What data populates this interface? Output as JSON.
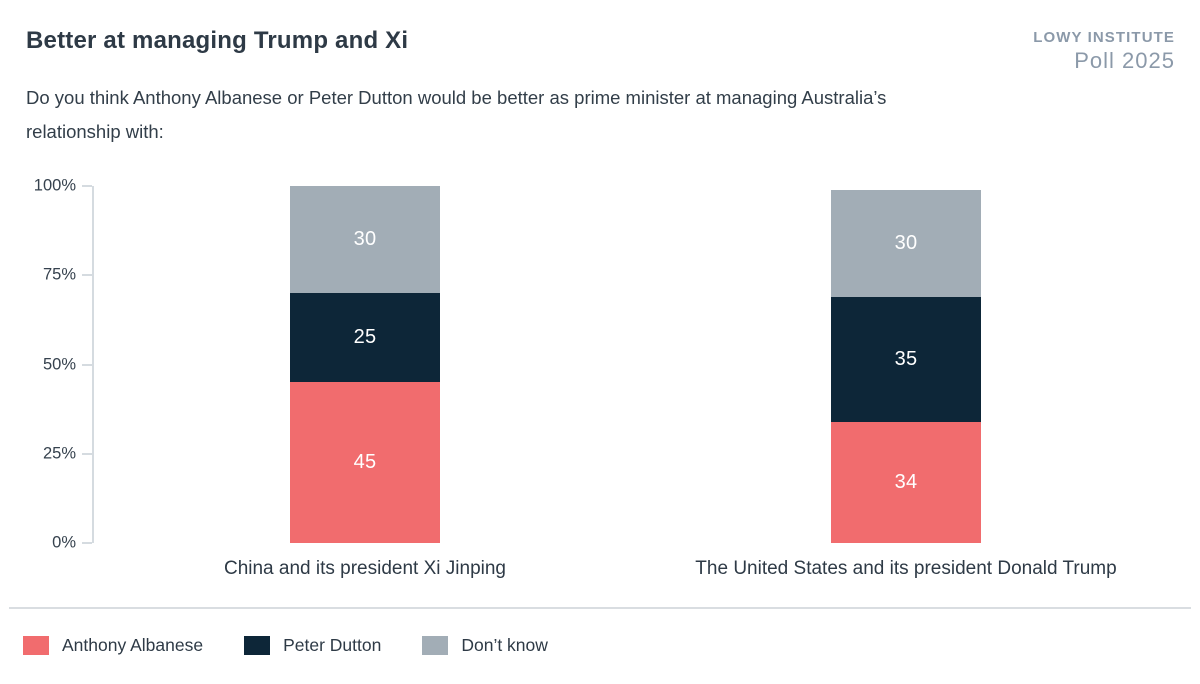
{
  "header": {
    "title": "Better at managing Trump and Xi",
    "logo_line1": "LOWY INSTITUTE",
    "logo_line2": "Poll 2025",
    "subtitle": "Do you think Anthony Albanese or Peter Dutton would be better as prime minister at managing Australia’s relationship with:"
  },
  "chart_data": {
    "type": "bar",
    "stacked": true,
    "categories": [
      "China and its president Xi Jinping",
      "The United States and its president Donald Trump"
    ],
    "series": [
      {
        "name": "Anthony Albanese",
        "color": "#f16c6e",
        "values": [
          45,
          34
        ]
      },
      {
        "name": "Peter Dutton",
        "color": "#0d2638",
        "values": [
          25,
          35
        ]
      },
      {
        "name": "Don’t know",
        "color": "#a2adb6",
        "values": [
          30,
          30
        ]
      }
    ],
    "y_ticks": [
      0,
      25,
      50,
      75,
      100
    ],
    "y_tick_suffix": "%",
    "ylim": [
      0,
      100
    ],
    "grid": false,
    "value_labels": true,
    "legend_position": "bottom"
  },
  "colors": {
    "title_text": "#2e3a46",
    "subtitle_text": "#323e49",
    "logo_text": "#8b99a9",
    "axis_line": "#d5dbe0",
    "divider": "#d9dde1",
    "bar_value_text": "#ffffff"
  }
}
